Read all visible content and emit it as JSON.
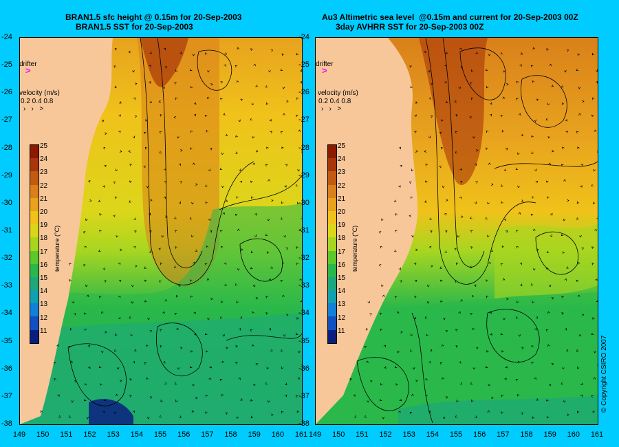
{
  "left_panel": {
    "title_line1": "BRAN1.5 sfc height @ 0.15m for 20-Sep-2003",
    "title_line2": "BRAN1.5 SST for 20-Sep-2003"
  },
  "right_panel": {
    "title_line1": "Au3 Altimetric sea level  @0.15m and current for 20-Sep-2003 00Z",
    "title_line2": "3day AVHRR SST for 20-Sep-2003 00Z"
  },
  "drifter_label": "drifter",
  "velocity": {
    "label": "velocity (m/s)",
    "scale": "0.2 0.4 0.8"
  },
  "colorbar": {
    "label": "temperature (°C)",
    "ticks": [
      "25",
      "24",
      "23",
      "22",
      "21",
      "20",
      "19",
      "18",
      "17",
      "16",
      "15",
      "14",
      "13",
      "12",
      "11"
    ],
    "colors": [
      "#8b1a00",
      "#a8360a",
      "#c25a12",
      "#d9801a",
      "#e8a21e",
      "#f0c21a",
      "#dcd61a",
      "#a8d620",
      "#5cc82c",
      "#2ab84a",
      "#1ca87a",
      "#10a0b0",
      "#1080d8",
      "#1050c0",
      "#0a1e80"
    ]
  },
  "y_ticks": [
    "-24",
    "-25",
    "-26",
    "-27",
    "-28",
    "-29",
    "-30",
    "-31",
    "-32",
    "-33",
    "-34",
    "-35",
    "-36",
    "-37",
    "-38"
  ],
  "x_ticks_left": [
    "149",
    "150",
    "151",
    "152",
    "153",
    "154",
    "155",
    "156",
    "157",
    "158",
    "159",
    "160",
    "161"
  ],
  "x_ticks_right": [
    "149",
    "150",
    "151",
    "152",
    "153",
    "154",
    "155",
    "156",
    "157",
    "158",
    "159",
    "160",
    "161"
  ],
  "copyright": "© Copyright CSIRO 2007",
  "colors": {
    "background": "#00ccff",
    "land": "#f7c79a",
    "drifter": "#ff00ff"
  }
}
